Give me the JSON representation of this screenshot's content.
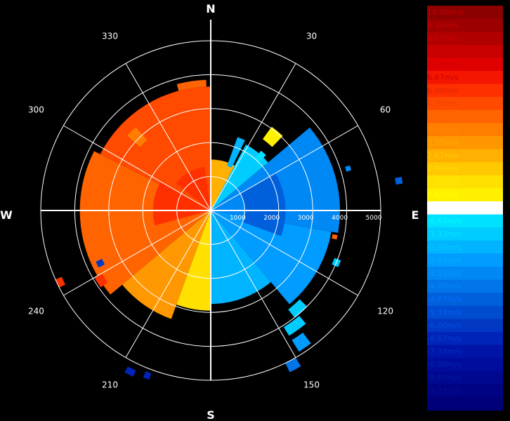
{
  "chart_data": {
    "type": "polar-radial-velocity-ppi",
    "compass": {
      "north": "N",
      "east": "E",
      "south": "S",
      "west": "W"
    },
    "azimuth_labels": [
      "30",
      "60",
      "120",
      "150",
      "210",
      "240",
      "300",
      "330"
    ],
    "azimuth_label_values": [
      30,
      60,
      120,
      150,
      210,
      240,
      300,
      330
    ],
    "range_labels": [
      "1000",
      "2000",
      "3000",
      "4000",
      "5000"
    ],
    "range_label_values": [
      1000,
      2000,
      3000,
      4000,
      5000
    ],
    "range_max": 5000,
    "spoke_step_deg": 30,
    "colorbar": {
      "labels": [
        "10.00m/s",
        "9.33m/s",
        "8.67m/s",
        "8.00m/s",
        "7.33m/s",
        "6.67m/s",
        "6.00m/s",
        "5.33m/s",
        "4.67m/s",
        "4.00m/s",
        "3.33m/s",
        "2.67m/s",
        "2.00m/s",
        "1.33m/s",
        "0.67m/s",
        "0.00m/s",
        "-0.67m/s",
        "-1.33m/s",
        "-2.00m/s",
        "-2.67m/s",
        "-3.33m/s",
        "-4.00m/s",
        "-4.67m/s",
        "-5.33m/s",
        "-6.00m/s",
        "-6.67m/s",
        "-7.33m/s",
        "-8.00m/s",
        "-8.67m/s",
        "-9.33m/s",
        "-10.00m/s"
      ],
      "colors": [
        "#8b0000",
        "#9c0000",
        "#b00000",
        "#c80000",
        "#e00000",
        "#f41600",
        "#ff3000",
        "#ff4a00",
        "#ff6400",
        "#ff7e00",
        "#ff9800",
        "#ffb000",
        "#ffc800",
        "#ffe000",
        "#fff000",
        "#ffffff",
        "#00e0ff",
        "#00ccff",
        "#00b4ff",
        "#009cff",
        "#0088f4",
        "#0074e8",
        "#0060dc",
        "#004cd0",
        "#0038c4",
        "#0024b8",
        "#0014a8",
        "#000c9c",
        "#000890",
        "#000484",
        "#000078"
      ],
      "label_colors": [
        "#cc0000",
        "#cc0000",
        "#cc0000",
        "#cc0000",
        "#cc0000",
        "#cc0000",
        "#dd2200",
        "#ee4400",
        "#ff6600",
        "#ff8800",
        "#ffaa00",
        "#ffcc00",
        "#ffdd00",
        "#ffee00",
        "#ffff00",
        "#ffffff",
        "#00ffff",
        "#00e6ff",
        "#00ccff",
        "#00b0ff",
        "#0099ff",
        "#0088ff",
        "#0070ff",
        "#0060f0",
        "#0050e0",
        "#0040d0",
        "#0033c0",
        "#0026b0",
        "#001aa0",
        "#000f90",
        "#000580"
      ]
    },
    "sectors": [
      {
        "az_start": 297,
        "az_end": 360,
        "r_start": 0,
        "r_end": 3650,
        "value": 5.3
      },
      {
        "az_start": 230,
        "az_end": 297,
        "r_start": 0,
        "r_end": 3850,
        "value": 4.6
      },
      {
        "az_start": 200,
        "az_end": 230,
        "r_start": 0,
        "r_end": 3400,
        "value": 3.4
      },
      {
        "az_start": 180,
        "az_end": 200,
        "r_start": 0,
        "r_end": 2950,
        "value": 1.5
      },
      {
        "az_start": 0,
        "az_end": 28,
        "r_start": 0,
        "r_end": 1500,
        "value": 2.4
      },
      {
        "az_start": 28,
        "az_end": 50,
        "r_start": 0,
        "r_end": 2200,
        "value": -1.4
      },
      {
        "az_start": 50,
        "az_end": 100,
        "r_start": 0,
        "r_end": 3800,
        "value": -3.4
      },
      {
        "az_start": 100,
        "az_end": 140,
        "r_start": 0,
        "r_end": 3600,
        "value": -3.0
      },
      {
        "az_start": 140,
        "az_end": 180,
        "r_start": 0,
        "r_end": 2750,
        "value": -1.9
      },
      {
        "az_start": 308,
        "az_end": 352,
        "r_start": 0,
        "r_end": 1300,
        "value": 6.3
      },
      {
        "az_start": 255,
        "az_end": 300,
        "r_start": 0,
        "r_end": 1700,
        "value": 5.7
      },
      {
        "az_start": 60,
        "az_end": 110,
        "r_start": 1000,
        "r_end": 2200,
        "value": -4.4
      },
      {
        "az_start": 345,
        "az_end": 358,
        "r_start": 3650,
        "r_end": 3850,
        "value": 4.4
      },
      {
        "az_start": 312,
        "az_end": 318,
        "r_start": 2800,
        "r_end": 3300,
        "value": 4.2
      },
      {
        "az_start": 20,
        "az_end": 26,
        "r_start": 1400,
        "r_end": 2300,
        "value": -2.2
      },
      {
        "az_start": 36,
        "az_end": 44,
        "r_start": 2600,
        "r_end": 3050,
        "value": 0.8
      },
      {
        "az_start": 40,
        "az_end": 45,
        "r_start": 2000,
        "r_end": 2300,
        "value": -0.8
      },
      {
        "az_start": 135,
        "az_end": 142,
        "r_start": 3700,
        "r_end": 4000,
        "value": -1.6
      },
      {
        "az_start": 140,
        "az_end": 148,
        "r_start": 4050,
        "r_end": 4350,
        "value": -1.1
      },
      {
        "az_start": 143,
        "az_end": 148,
        "r_start": 4500,
        "r_end": 4900,
        "value": -2.4
      },
      {
        "az_start": 150,
        "az_end": 154,
        "r_start": 5000,
        "r_end": 5300,
        "value": -4.0
      },
      {
        "az_start": 235,
        "az_end": 240,
        "r_start": 3700,
        "r_end": 3950,
        "value": 5.8
      },
      {
        "az_start": 243,
        "az_end": 246,
        "r_start": 3500,
        "r_end": 3700,
        "value": -6.2
      },
      {
        "az_start": 205,
        "az_end": 208,
        "r_start": 5200,
        "r_end": 5400,
        "value": -6.5
      },
      {
        "az_start": 200,
        "az_end": 202,
        "r_start": 5100,
        "r_end": 5300,
        "value": -7.0
      },
      {
        "az_start": 243,
        "az_end": 246,
        "r_start": 4800,
        "r_end": 5000,
        "value": 6.2
      },
      {
        "az_start": 80,
        "az_end": 82,
        "r_start": 5500,
        "r_end": 5700,
        "value": -4.6
      },
      {
        "az_start": 111,
        "az_end": 114,
        "r_start": 3900,
        "r_end": 4100,
        "value": -1.3
      },
      {
        "az_start": 72,
        "az_end": 74,
        "r_start": 4150,
        "r_end": 4300,
        "value": -3.2
      },
      {
        "az_start": 101,
        "az_end": 103,
        "r_start": 3650,
        "r_end": 3800,
        "value": 4.5
      }
    ]
  }
}
